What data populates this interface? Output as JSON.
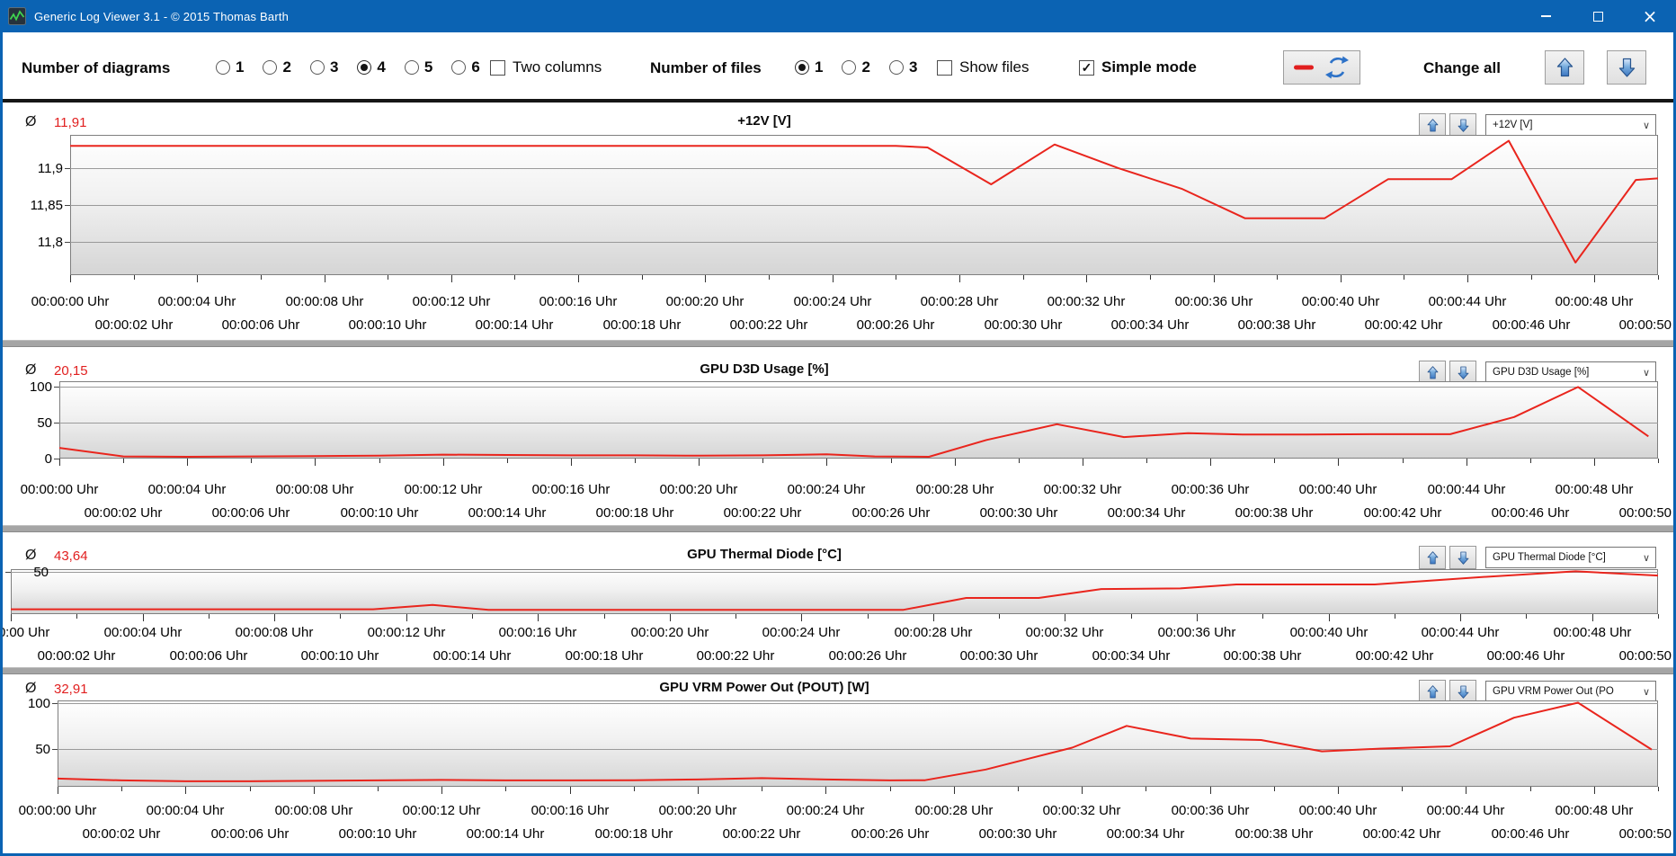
{
  "window": {
    "title": "Generic Log Viewer 3.1 - © 2015 Thomas Barth",
    "accent_color": "#0b63b3",
    "controls": [
      "minimize",
      "maximize",
      "close"
    ]
  },
  "icons": {
    "dropdown_chevron": "∨",
    "checkbox_check": "✓",
    "window_close": "×",
    "average_symbol": "Ø"
  },
  "toolbar": {
    "number_of_diagrams": {
      "label": "Number of diagrams",
      "options": [
        "1",
        "2",
        "3",
        "4",
        "5",
        "6"
      ],
      "selected": "4"
    },
    "two_columns": {
      "label": "Two columns",
      "checked": false
    },
    "number_of_files": {
      "label": "Number of files",
      "options": [
        "1",
        "2",
        "3"
      ],
      "selected": "1"
    },
    "show_files": {
      "label": "Show files",
      "checked": false
    },
    "simple_mode": {
      "label": "Simple mode",
      "checked": true
    },
    "line_refresh_button": {
      "icons": [
        "red-minus-icon",
        "blue-refresh-icon"
      ]
    },
    "change_all": {
      "label": "Change all"
    }
  },
  "x_axis": {
    "unit": "Uhr",
    "tick_seconds": [
      0,
      2,
      4,
      6,
      8,
      10,
      12,
      14,
      16,
      18,
      20,
      22,
      24,
      26,
      28,
      30,
      32,
      34,
      36,
      38,
      40,
      42,
      44,
      46,
      48,
      50
    ],
    "row1_labels": [
      "00:00:00 Uhr",
      "00:00:04 Uhr",
      "00:00:08 Uhr",
      "00:00:12 Uhr",
      "00:00:16 Uhr",
      "00:00:20 Uhr",
      "00:00:24 Uhr",
      "00:00:28 Uhr",
      "00:00:32 Uhr",
      "00:00:36 Uhr",
      "00:00:40 Uhr",
      "00:00:44 Uhr",
      "00:00:48 Uhr"
    ],
    "row2_labels": [
      "00:00:02 Uhr",
      "00:00:06 Uhr",
      "00:00:10 Uhr",
      "00:00:14 Uhr",
      "00:00:18 Uhr",
      "00:00:22 Uhr",
      "00:00:26 Uhr",
      "00:00:30 Uhr",
      "00:00:34 Uhr",
      "00:00:38 Uhr",
      "00:00:42 Uhr",
      "00:00:46 Uhr",
      "00:00:50 Uhr"
    ]
  },
  "chart_data": [
    {
      "type": "line",
      "title": "+12V [V]",
      "avg_symbol": "Ø",
      "avg": "11,91",
      "selector": "+12V [V]",
      "line_color": "#e9251d",
      "ylim": [
        11.755,
        11.945
      ],
      "yticks": [
        {
          "v": 11.9,
          "label": "11,9"
        },
        {
          "v": 11.85,
          "label": "11,85"
        },
        {
          "v": 11.8,
          "label": "11,8"
        }
      ],
      "x_seconds": [
        0,
        26,
        27,
        29,
        31,
        33,
        35,
        37,
        39.5,
        41.5,
        43.5,
        45.3,
        47.4,
        49.3,
        50
      ],
      "values": [
        11.93,
        11.93,
        11.928,
        11.878,
        11.932,
        11.9,
        11.872,
        11.832,
        11.832,
        11.885,
        11.885,
        11.937,
        11.772,
        11.884,
        11.886
      ]
    },
    {
      "type": "line",
      "title": "GPU D3D Usage [%]",
      "avg_symbol": "Ø",
      "avg": "20,15",
      "selector": "GPU D3D Usage [%]",
      "line_color": "#e9251d",
      "ylim": [
        0,
        108
      ],
      "yticks": [
        {
          "v": 100,
          "label": "100"
        },
        {
          "v": 50,
          "label": "50"
        },
        {
          "v": 0,
          "label": "0"
        }
      ],
      "x_seconds": [
        0,
        2,
        4,
        6,
        8,
        10,
        12,
        14,
        16,
        18,
        20,
        22,
        24,
        25.5,
        27.2,
        29,
        31.2,
        33.3,
        35.3,
        37,
        39,
        41,
        43.5,
        45.5,
        47.5,
        49.7
      ],
      "values": [
        15,
        3,
        2.5,
        3,
        3.5,
        4,
        5.5,
        5,
        4.5,
        4.5,
        4,
        4.5,
        6,
        3,
        2.5,
        26,
        48,
        30,
        35.5,
        33.5,
        33.5,
        34,
        34,
        58,
        100,
        31
      ]
    },
    {
      "type": "line",
      "title": "GPU Thermal Diode [°C]",
      "avg_symbol": "Ø",
      "avg": "43,64",
      "selector": "GPU Thermal Diode [°C]",
      "line_color": "#e9251d",
      "ylim": [
        36.2,
        50.9
      ],
      "yticks": [
        {
          "v": 50,
          "label": "50"
        }
      ],
      "x_seconds": [
        0,
        11,
        12.8,
        14.5,
        27.1,
        29,
        31.2,
        33.1,
        35.5,
        37.2,
        41.4,
        44.9,
        47.5,
        50
      ],
      "values": [
        37.8,
        37.8,
        39.2,
        37.6,
        37.6,
        41.5,
        41.5,
        44.4,
        44.6,
        45.9,
        45.9,
        48.5,
        50.2,
        48.8
      ]
    },
    {
      "type": "line",
      "title": "GPU VRM Power Out (POUT) [W]",
      "avg_symbol": "Ø",
      "avg": "32,91",
      "selector": "GPU VRM Power Out (PO",
      "line_color": "#e9251d",
      "ylim": [
        8,
        103
      ],
      "yticks": [
        {
          "v": 100,
          "label": "100"
        },
        {
          "v": 50,
          "label": "50"
        }
      ],
      "x_seconds": [
        0,
        2,
        4,
        6,
        8,
        10,
        12,
        14,
        16,
        18,
        20,
        22,
        24,
        26,
        27.1,
        29,
        31.7,
        33.4,
        35.4,
        37.6,
        39.5,
        41.3,
        43.5,
        45.5,
        47.5,
        49.8
      ],
      "values": [
        17,
        15,
        14,
        14,
        14.5,
        15,
        15.5,
        15,
        15,
        15.2,
        16,
        17.5,
        16,
        15,
        15.2,
        27,
        51,
        75,
        61,
        59.5,
        47,
        50,
        52.5,
        84,
        100.5,
        49
      ]
    }
  ]
}
